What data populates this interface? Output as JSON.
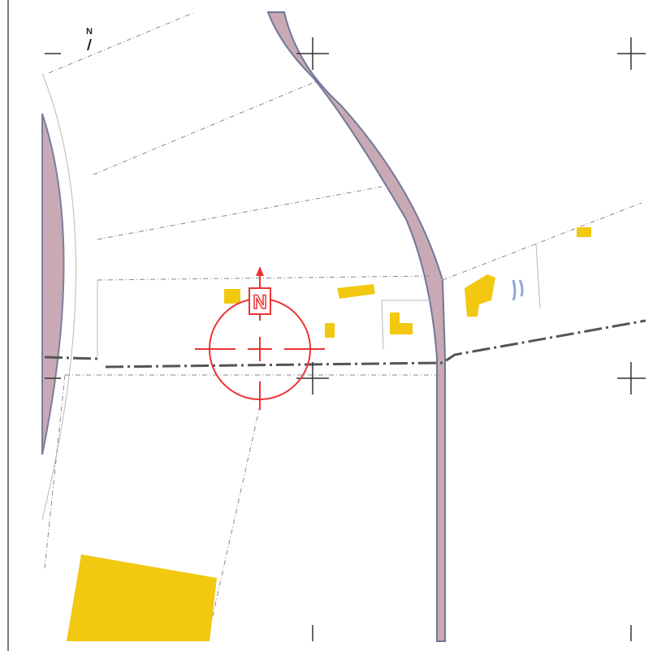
{
  "north_label": "N",
  "marker_label": "N"
}
